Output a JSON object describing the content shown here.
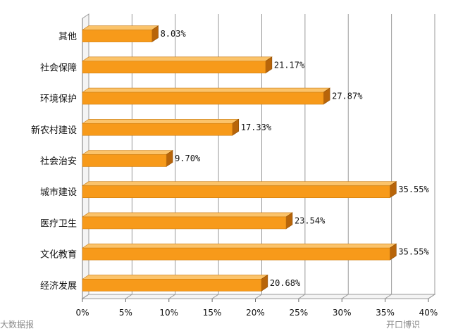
{
  "chart_data": {
    "type": "bar",
    "orientation": "horizontal",
    "categories": [
      "其他",
      "社会保障",
      "环境保护",
      "新农村建设",
      "社会治安",
      "城市建设",
      "医疗卫生",
      "文化教育",
      "经济发展"
    ],
    "values": [
      8.03,
      21.17,
      27.87,
      17.33,
      9.7,
      35.55,
      23.54,
      35.55,
      20.68
    ],
    "value_labels": [
      "8.03%",
      "21.17%",
      "27.87%",
      "17.33%",
      "9.70%",
      "35.55%",
      "23.54%",
      "35.55%",
      "20.68%"
    ],
    "xlim": [
      0,
      40
    ],
    "x_ticks": [
      0,
      5,
      10,
      15,
      20,
      25,
      30,
      35,
      40
    ],
    "x_tick_labels": [
      "0%",
      "5%",
      "10%",
      "15%",
      "20%",
      "25%",
      "30%",
      "35%",
      "40%"
    ],
    "grid": true,
    "legend": "none",
    "style": "3d",
    "colors": {
      "bar_front": "#F79A1A",
      "bar_top": "#FBC36A",
      "bar_side": "#B8650A",
      "grid": "#9a9a9a",
      "wall": "#ffffff"
    }
  },
  "watermarks": {
    "left": "大数据报",
    "right": "开口博识"
  }
}
